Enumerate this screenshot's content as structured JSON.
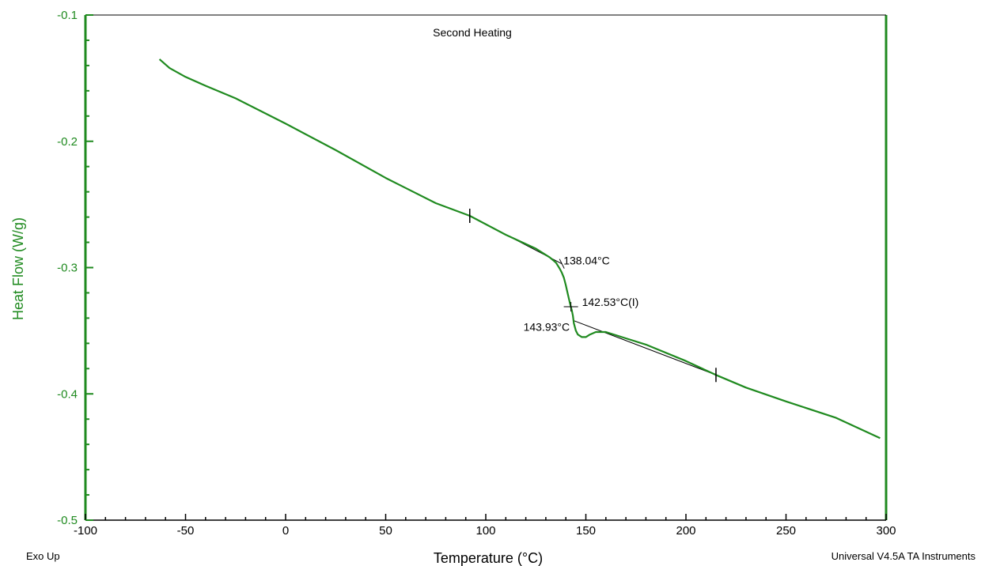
{
  "chart_data": {
    "type": "line",
    "title": "Second Heating",
    "xlabel": "Temperature (°C)",
    "ylabel": "Heat Flow (W/g)",
    "xlim": [
      -100,
      300
    ],
    "ylim": [
      -0.5,
      -0.1
    ],
    "x_ticks": [
      -100,
      -50,
      0,
      50,
      100,
      150,
      200,
      250,
      300
    ],
    "x_tick_labels": [
      "-100",
      "-50",
      "0",
      "50",
      "100",
      "150",
      "200",
      "250",
      "300"
    ],
    "y_ticks": [
      -0.5,
      -0.4,
      -0.3,
      -0.2,
      -0.1
    ],
    "y_tick_labels": [
      "-0.5",
      "-0.4",
      "-0.3",
      "-0.2",
      "-0.1"
    ],
    "grid": false,
    "series": [
      {
        "color": "#1f8a1f",
        "x": [
          -63,
          -58,
          -50,
          -40,
          -25,
          0,
          25,
          50,
          75,
          92,
          110,
          125,
          132,
          135,
          137,
          138,
          139,
          140,
          141,
          142,
          142.5,
          143,
          143.5,
          144,
          145,
          146,
          148,
          150,
          152,
          155,
          160,
          170,
          180,
          200,
          215,
          230,
          250,
          275,
          297
        ],
        "y": [
          -0.135,
          -0.142,
          -0.149,
          -0.156,
          -0.166,
          -0.186,
          -0.207,
          -0.229,
          -0.249,
          -0.259,
          -0.274,
          -0.285,
          -0.292,
          -0.296,
          -0.301,
          -0.304,
          -0.308,
          -0.314,
          -0.321,
          -0.328,
          -0.331,
          -0.334,
          -0.338,
          -0.344,
          -0.35,
          -0.353,
          -0.355,
          -0.355,
          -0.353,
          -0.351,
          -0.351,
          -0.356,
          -0.361,
          -0.374,
          -0.385,
          -0.395,
          -0.406,
          -0.419,
          -0.435
        ]
      }
    ],
    "baselines": [
      {
        "x": [
          92,
          138
        ],
        "y": [
          -0.259,
          -0.297
        ]
      },
      {
        "x": [
          143.9,
          215
        ],
        "y": [
          -0.342,
          -0.385
        ]
      }
    ],
    "markers": [
      {
        "x": 92,
        "y": -0.259
      },
      {
        "x": 215,
        "y": -0.385
      }
    ],
    "annotations": [
      {
        "label": "138.04°C",
        "x": 138.04,
        "y": -0.297
      },
      {
        "label": "142.53°C(I)",
        "x": 142.53,
        "y": -0.331
      },
      {
        "label": "143.93°C",
        "x": 143.93,
        "y": -0.342
      }
    ]
  },
  "footer": {
    "left": "Exo Up",
    "right": "Universal V4.5A TA Instruments"
  },
  "colors": {
    "axis": "#1f8a1f",
    "series": "#1f8a1f",
    "text": "#000000"
  }
}
